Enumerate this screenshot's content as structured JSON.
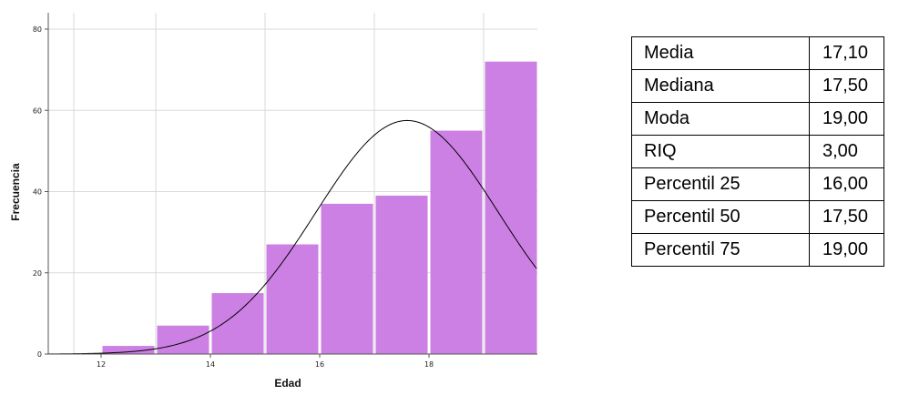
{
  "chart_data": {
    "type": "bar",
    "xlabel": "Edad",
    "ylabel": "Frecuencia",
    "x_ticks": [
      "12",
      "14",
      "16",
      "18"
    ],
    "y_ticks": [
      "0",
      "20",
      "40",
      "60",
      "80"
    ],
    "xlim": [
      11,
      20
    ],
    "ylim": [
      0,
      80
    ],
    "grid": true,
    "bar_color": "#cc80e3",
    "bins": [
      {
        "from": 11,
        "to": 12,
        "value": 0
      },
      {
        "from": 12,
        "to": 13,
        "value": 2
      },
      {
        "from": 13,
        "to": 14,
        "value": 7
      },
      {
        "from": 14,
        "to": 15,
        "value": 15
      },
      {
        "from": 15,
        "to": 16,
        "value": 27
      },
      {
        "from": 16,
        "to": 17,
        "value": 37
      },
      {
        "from": 17,
        "to": 18,
        "value": 39
      },
      {
        "from": 18,
        "to": 19,
        "value": 55
      },
      {
        "from": 19,
        "to": 20,
        "value": 72
      }
    ],
    "normal_curve": {
      "mean": 17.1,
      "peak": 57.5,
      "sd": 1.67
    }
  },
  "stats_table": {
    "rows": [
      {
        "label": "Media",
        "value": "17,10"
      },
      {
        "label": "Mediana",
        "value": "17,50"
      },
      {
        "label": "Moda",
        "value": "19,00"
      },
      {
        "label": "RIQ",
        "value": "3,00"
      },
      {
        "label": "Percentil 25",
        "value": "16,00"
      },
      {
        "label": "Percentil 50",
        "value": "17,50"
      },
      {
        "label": "Percentil 75",
        "value": "19,00"
      }
    ]
  }
}
